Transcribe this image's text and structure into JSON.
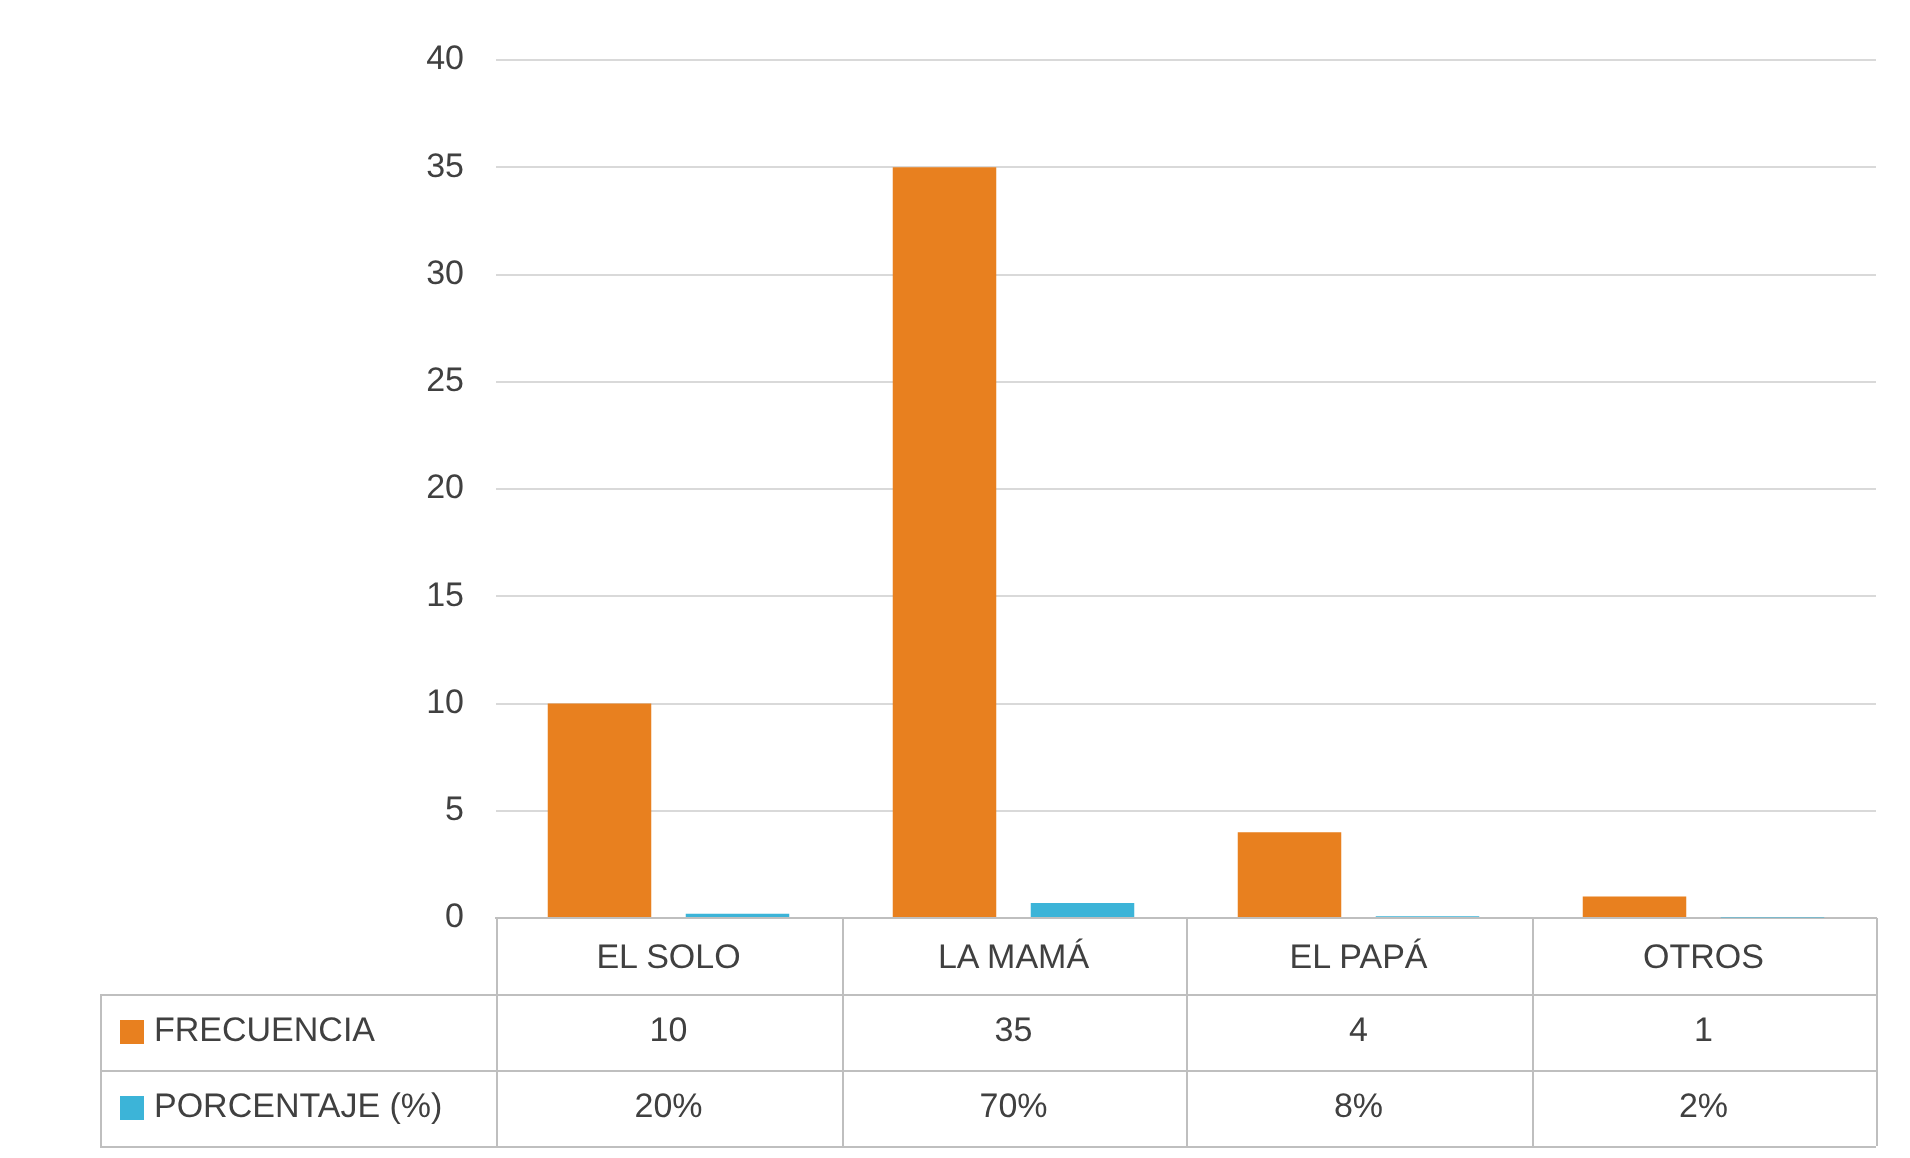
{
  "chart_data": {
    "type": "bar",
    "categories": [
      "EL SOLO",
      "LA MAMÁ",
      "EL PAPÁ",
      "OTROS"
    ],
    "series": [
      {
        "name": "FRECUENCIA",
        "color": "#e8801f",
        "values": [
          10,
          35,
          4,
          1
        ],
        "value_labels": [
          "10",
          "35",
          "4",
          "1"
        ]
      },
      {
        "name": "PORCENTAJE (%)",
        "color": "#3cb4d8",
        "values": [
          0.2,
          0.7,
          0.08,
          0.02
        ],
        "value_labels": [
          "20%",
          "70%",
          "8%",
          "2%"
        ]
      }
    ],
    "ylim": [
      0,
      40
    ],
    "yticks": [
      0,
      5,
      10,
      15,
      20,
      25,
      30,
      35,
      40
    ],
    "grid": "y",
    "legend": "bottom"
  }
}
